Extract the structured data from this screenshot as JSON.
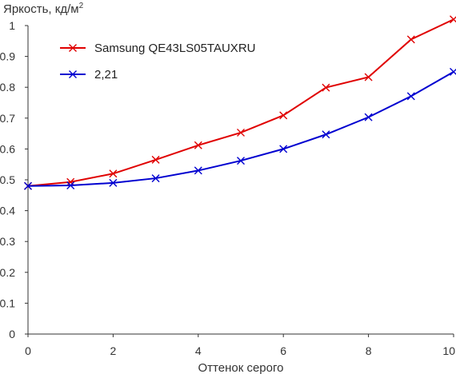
{
  "chart_data": {
    "type": "line",
    "title": "",
    "ylabel": "Яркость, кд/м",
    "ylabel_sup": "2",
    "xlabel": "Оттенок серого",
    "xlim": [
      0,
      10
    ],
    "ylim": [
      0,
      1
    ],
    "x_ticks": [
      "0",
      "2",
      "4",
      "6",
      "8",
      "10"
    ],
    "y_ticks": [
      "0",
      "0.1",
      "0.2",
      "0.3",
      "0.4",
      "0.5",
      "0.6",
      "0.7",
      "0.8",
      "0.9",
      "1"
    ],
    "x_tick_values": [
      0,
      2,
      4,
      6,
      8,
      10
    ],
    "y_tick_values": [
      0,
      0.1,
      0.2,
      0.3,
      0.4,
      0.5,
      0.6,
      0.7,
      0.8,
      0.9,
      1
    ],
    "grid": false,
    "legend_position": "top-left",
    "x": [
      0,
      1,
      2,
      3,
      4,
      5,
      6,
      7,
      8,
      9,
      10
    ],
    "series": [
      {
        "name": "Samsung QE43LS05TAUXRU",
        "color": "#e00000",
        "marker": "x",
        "values": [
          0.48,
          0.493,
          0.52,
          0.565,
          0.612,
          0.653,
          0.709,
          0.799,
          0.833,
          0.955,
          1.02
        ]
      },
      {
        "name": "2,21",
        "color": "#0000d0",
        "marker": "x",
        "values": [
          0.48,
          0.482,
          0.49,
          0.505,
          0.53,
          0.562,
          0.6,
          0.647,
          0.703,
          0.771,
          0.85
        ]
      }
    ]
  }
}
